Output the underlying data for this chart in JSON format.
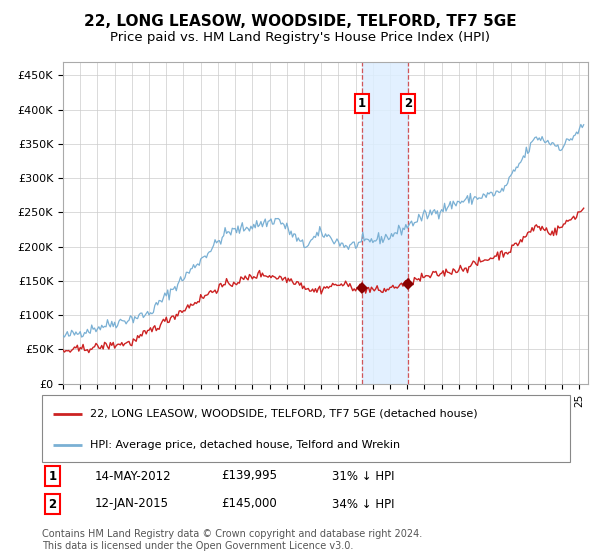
{
  "title": "22, LONG LEASOW, WOODSIDE, TELFORD, TF7 5GE",
  "subtitle": "Price paid vs. HM Land Registry's House Price Index (HPI)",
  "title_fontsize": 11,
  "subtitle_fontsize": 9.5,
  "hpi_color": "#7ab0d4",
  "price_color": "#cc2222",
  "marker_color": "#880000",
  "shade_color": "#ddeeff",
  "grid_color": "#cccccc",
  "ylim": [
    0,
    470000
  ],
  "yticks": [
    0,
    50000,
    100000,
    150000,
    200000,
    250000,
    300000,
    350000,
    400000,
    450000
  ],
  "xlim_start": 1995,
  "xlim_end": 2025.5,
  "sale1_year_f": 2012.37,
  "sale2_year_f": 2015.04,
  "sale1_price": 139995,
  "sale2_price": 145000,
  "sale1_date": "14-MAY-2012",
  "sale2_date": "12-JAN-2015",
  "sale1_label": "31% ↓ HPI",
  "sale2_label": "34% ↓ HPI",
  "legend_price_label": "22, LONG LEASOW, WOODSIDE, TELFORD, TF7 5GE (detached house)",
  "legend_hpi_label": "HPI: Average price, detached house, Telford and Wrekin",
  "footer": "Contains HM Land Registry data © Crown copyright and database right 2024.\nThis data is licensed under the Open Government Licence v3.0."
}
